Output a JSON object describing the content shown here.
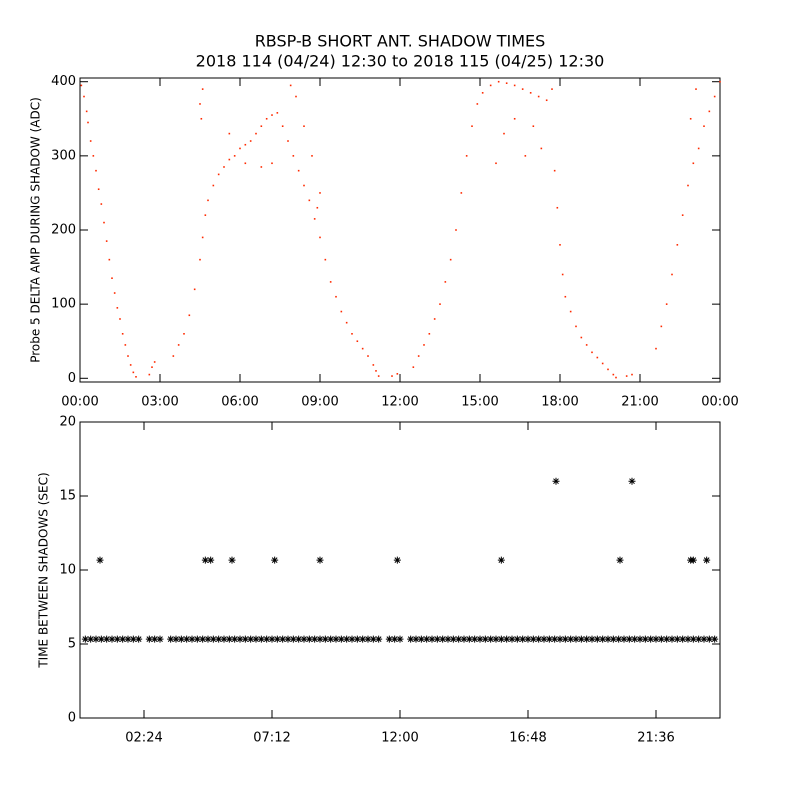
{
  "chart_data": [
    {
      "type": "scatter",
      "marker": "dot",
      "title": "RBSP-B SHORT ANT. SHADOW TIMES",
      "subtitle": "2018 114 (04/24) 12:30 to 2018 115 (04/25) 12:30",
      "ylabel": "Probe 5 DELTA AMP DURING SHADOW (ADC)",
      "xlim": [
        0,
        24
      ],
      "ylim": [
        -5,
        405
      ],
      "xticks": [
        {
          "value": 0,
          "label": "00:00"
        },
        {
          "value": 3,
          "label": "03:00"
        },
        {
          "value": 6,
          "label": "06:00"
        },
        {
          "value": 9,
          "label": "09:00"
        },
        {
          "value": 12,
          "label": "12:00"
        },
        {
          "value": 15,
          "label": "15:00"
        },
        {
          "value": 18,
          "label": "18:00"
        },
        {
          "value": 21,
          "label": "21:00"
        },
        {
          "value": 24,
          "label": "00:00"
        }
      ],
      "yticks": [
        0,
        100,
        200,
        300,
        400
      ],
      "series": [
        {
          "color": "#ff2a00",
          "x": [
            0.05,
            0.15,
            0.25,
            0.3,
            0.4,
            0.5,
            0.6,
            0.7,
            0.8,
            0.9,
            1.0,
            1.1,
            1.2,
            1.3,
            1.4,
            1.5,
            1.6,
            1.7,
            1.8,
            1.9,
            2.0,
            2.1,
            2.6,
            2.7,
            2.8,
            3.5,
            3.7,
            3.9,
            4.1,
            4.3,
            4.5,
            4.6,
            4.7,
            4.8,
            5.0,
            5.2,
            5.4,
            5.6,
            5.8,
            6.0,
            6.2,
            6.4,
            6.6,
            6.8,
            7.0,
            7.2,
            7.4,
            4.5,
            4.6,
            4.55,
            5.6,
            6.2,
            6.8,
            7.2,
            7.6,
            7.8,
            8.0,
            8.2,
            8.4,
            8.6,
            8.8,
            9.0,
            9.2,
            9.4,
            9.6,
            9.8,
            10.0,
            10.2,
            10.4,
            10.6,
            10.8,
            11.0,
            11.1,
            11.2,
            7.9,
            8.1,
            8.4,
            8.7,
            9.0,
            8.9,
            11.7,
            11.9,
            12.5,
            12.7,
            12.9,
            13.1,
            13.3,
            13.5,
            13.7,
            13.9,
            14.1,
            14.3,
            14.5,
            14.7,
            14.9,
            15.1,
            15.4,
            15.7,
            16.0,
            16.3,
            16.6,
            16.9,
            17.2,
            17.5,
            15.6,
            15.9,
            16.3,
            16.7,
            17.0,
            17.3,
            17.7,
            17.8,
            17.9,
            18.0,
            18.1,
            18.2,
            18.4,
            18.6,
            18.8,
            19.0,
            19.2,
            19.4,
            19.6,
            19.8,
            20.0,
            20.1,
            20.5,
            20.7,
            21.6,
            21.8,
            22.0,
            22.2,
            22.4,
            22.6,
            22.8,
            23.0,
            23.2,
            23.4,
            23.6,
            23.8,
            24.0,
            22.9,
            23.1
          ],
          "values": [
            395,
            380,
            360,
            345,
            320,
            300,
            280,
            255,
            235,
            210,
            185,
            160,
            135,
            115,
            95,
            80,
            60,
            45,
            30,
            18,
            8,
            2,
            5,
            15,
            22,
            30,
            45,
            60,
            85,
            120,
            160,
            190,
            220,
            240,
            260,
            275,
            285,
            295,
            300,
            310,
            315,
            320,
            330,
            340,
            350,
            355,
            358,
            370,
            390,
            350,
            330,
            290,
            285,
            290,
            340,
            320,
            300,
            280,
            260,
            240,
            215,
            190,
            160,
            130,
            110,
            90,
            75,
            60,
            50,
            40,
            30,
            18,
            10,
            3,
            395,
            380,
            340,
            300,
            250,
            230,
            3,
            6,
            15,
            30,
            45,
            60,
            80,
            100,
            130,
            160,
            200,
            250,
            300,
            340,
            370,
            385,
            395,
            400,
            398,
            395,
            390,
            385,
            380,
            375,
            290,
            330,
            350,
            300,
            340,
            310,
            390,
            280,
            230,
            180,
            140,
            110,
            90,
            70,
            55,
            45,
            35,
            28,
            20,
            12,
            5,
            1,
            3,
            5,
            40,
            70,
            100,
            140,
            180,
            220,
            260,
            290,
            310,
            340,
            360,
            380,
            400,
            350,
            390
          ]
        }
      ]
    },
    {
      "type": "scatter",
      "marker": "asterisk",
      "ylabel": "TIME BETWEEN SHADOWS (SEC)",
      "xlim": [
        0,
        24
      ],
      "ylim": [
        0,
        20
      ],
      "xticks": [
        {
          "value": 2.4,
          "label": "02:24"
        },
        {
          "value": 7.2,
          "label": "07:12"
        },
        {
          "value": 12,
          "label": "12:00"
        },
        {
          "value": 16.8,
          "label": "16:48"
        },
        {
          "value": 21.6,
          "label": "21:36"
        }
      ],
      "yticks": [
        0,
        5,
        10,
        15,
        20
      ],
      "series": [
        {
          "color": "#000000",
          "x": [
            0.2,
            0.4,
            0.6,
            0.8,
            1.0,
            1.2,
            1.4,
            1.6,
            1.8,
            2.0,
            2.2,
            2.6,
            2.8,
            3.0,
            3.4,
            3.6,
            3.8,
            4.0,
            4.2,
            4.4,
            4.6,
            4.8,
            5.0,
            5.2,
            5.4,
            5.6,
            5.8,
            6.0,
            6.2,
            6.4,
            6.6,
            6.8,
            7.0,
            7.2,
            7.4,
            7.6,
            7.8,
            8.0,
            8.2,
            8.4,
            8.6,
            8.8,
            9.0,
            9.2,
            9.4,
            9.6,
            9.8,
            10.0,
            10.2,
            10.4,
            10.6,
            10.8,
            11.0,
            11.2,
            11.6,
            11.8,
            12.0,
            12.4,
            12.6,
            12.8,
            13.0,
            13.2,
            13.4,
            13.6,
            13.8,
            14.0,
            14.2,
            14.4,
            14.6,
            14.8,
            15.0,
            15.2,
            15.4,
            15.6,
            15.8,
            16.0,
            16.2,
            16.4,
            16.6,
            16.8,
            17.0,
            17.2,
            17.4,
            17.6,
            17.8,
            18.0,
            18.2,
            18.4,
            18.6,
            18.8,
            19.0,
            19.2,
            19.4,
            19.6,
            19.8,
            20.0,
            20.2,
            20.4,
            20.6,
            20.8,
            21.0,
            21.2,
            21.4,
            21.6,
            21.8,
            22.0,
            22.2,
            22.4,
            22.6,
            22.8,
            23.0,
            23.2,
            23.4,
            23.6,
            23.8
          ],
          "values": [
            5.33,
            5.33,
            5.33,
            5.33,
            5.33,
            5.33,
            5.33,
            5.33,
            5.33,
            5.33,
            5.33,
            5.33,
            5.33,
            5.33,
            5.33,
            5.33,
            5.33,
            5.33,
            5.33,
            5.33,
            5.33,
            5.33,
            5.33,
            5.33,
            5.33,
            5.33,
            5.33,
            5.33,
            5.33,
            5.33,
            5.33,
            5.33,
            5.33,
            5.33,
            5.33,
            5.33,
            5.33,
            5.33,
            5.33,
            5.33,
            5.33,
            5.33,
            5.33,
            5.33,
            5.33,
            5.33,
            5.33,
            5.33,
            5.33,
            5.33,
            5.33,
            5.33,
            5.33,
            5.33,
            5.33,
            5.33,
            5.33,
            5.33,
            5.33,
            5.33,
            5.33,
            5.33,
            5.33,
            5.33,
            5.33,
            5.33,
            5.33,
            5.33,
            5.33,
            5.33,
            5.33,
            5.33,
            5.33,
            5.33,
            5.33,
            5.33,
            5.33,
            5.33,
            5.33,
            5.33,
            5.33,
            5.33,
            5.33,
            5.33,
            5.33,
            5.33,
            5.33,
            5.33,
            5.33,
            5.33,
            5.33,
            5.33,
            5.33,
            5.33,
            5.33,
            5.33,
            5.33,
            5.33,
            5.33,
            5.33,
            5.33,
            5.33,
            5.33,
            5.33,
            5.33,
            5.33,
            5.33,
            5.33,
            5.33,
            5.33,
            5.33,
            5.33,
            5.33,
            5.33,
            5.33
          ]
        },
        {
          "color": "#000000",
          "x": [
            0.75,
            4.7,
            4.9,
            5.7,
            7.3,
            9.0,
            11.9,
            15.8,
            20.25,
            22.9,
            23.0,
            23.5,
            17.85,
            20.7
          ],
          "values": [
            10.67,
            10.67,
            10.67,
            10.67,
            10.67,
            10.67,
            10.67,
            10.67,
            10.67,
            10.67,
            10.67,
            10.67,
            16,
            16
          ]
        }
      ]
    }
  ]
}
